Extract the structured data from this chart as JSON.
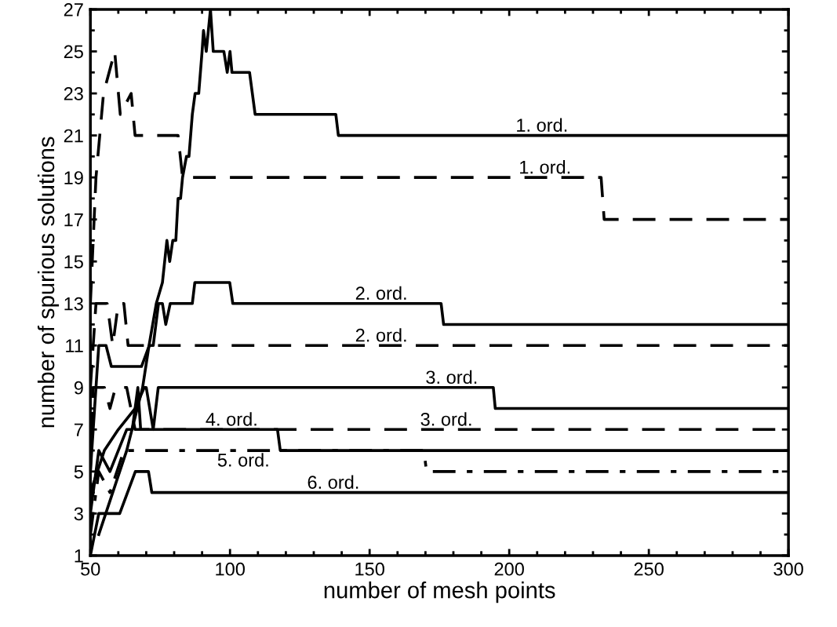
{
  "chart_data": {
    "type": "line",
    "xlabel": "number of mesh points",
    "ylabel": "number of spurious solutions",
    "xlim": [
      50,
      300
    ],
    "ylim": [
      1,
      27
    ],
    "xticks": [
      50,
      {
        "value": 60,
        "label": null
      },
      {
        "value": 70,
        "label": null
      },
      {
        "value": 80,
        "label": null
      },
      {
        "value": 90,
        "label": null
      },
      100,
      {
        "value": 110,
        "label": null
      },
      {
        "value": 120,
        "label": null
      },
      {
        "value": 130,
        "label": null
      },
      {
        "value": 140,
        "label": null
      },
      150,
      {
        "value": 160,
        "label": null
      },
      {
        "value": 170,
        "label": null
      },
      {
        "value": 180,
        "label": null
      },
      {
        "value": 190,
        "label": null
      },
      200,
      {
        "value": 210,
        "label": null
      },
      {
        "value": 220,
        "label": null
      },
      {
        "value": 230,
        "label": null
      },
      {
        "value": 240,
        "label": null
      },
      250,
      {
        "value": 260,
        "label": null
      },
      {
        "value": 270,
        "label": null
      },
      {
        "value": 280,
        "label": null
      },
      {
        "value": 290,
        "label": null
      },
      300
    ],
    "yticks": [
      1,
      {
        "value": 2,
        "label": null
      },
      3,
      {
        "value": 4,
        "label": null
      },
      5,
      {
        "value": 6,
        "label": null
      },
      7,
      {
        "value": 8,
        "label": null
      },
      9,
      {
        "value": 10,
        "label": null
      },
      11,
      {
        "value": 12,
        "label": null
      },
      13,
      {
        "value": 14,
        "label": null
      },
      15,
      {
        "value": 16,
        "label": null
      },
      17,
      {
        "value": 18,
        "label": null
      },
      19,
      {
        "value": 20,
        "label": null
      },
      21,
      {
        "value": 22,
        "label": null
      },
      23,
      {
        "value": 24,
        "label": null
      },
      25,
      {
        "value": 26,
        "label": null
      },
      27
    ],
    "grid": false,
    "legend": false,
    "marker": "none",
    "series": [
      {
        "color": "#000000",
        "line_style": "solid",
        "x": [
          53,
          58,
          63,
          68.7,
          71,
          73.6,
          75.8,
          77.4,
          78.4,
          79.5,
          80.6,
          81.4,
          82.3,
          83,
          84.4,
          85.3,
          86.5,
          87.5,
          88.8,
          90,
          90.5,
          91.5,
          93,
          94,
          97.8,
          99,
          100,
          100.7,
          107,
          109,
          137.9,
          138.8,
          300
        ],
        "values": [
          2,
          4,
          6,
          9,
          11,
          13,
          14,
          16,
          15,
          16,
          16,
          18,
          18,
          19,
          20,
          20,
          22,
          23,
          23,
          25,
          26,
          25,
          27,
          25,
          25,
          24,
          25,
          24,
          24,
          22,
          22,
          21,
          21
        ]
      },
      {
        "color": "#000000",
        "line_style": "dashed",
        "x": [
          50,
          52,
          54.7,
          58.7,
          60.7,
          64.6,
          66,
          81.4,
          83,
          232.9,
          234,
          300
        ],
        "values": [
          13,
          19,
          23,
          25,
          22,
          23,
          21,
          21,
          19,
          19,
          17,
          17
        ]
      },
      {
        "color": "#000000",
        "line_style": "solid",
        "x": [
          50,
          53,
          55.6,
          57.5,
          68.3,
          71.1,
          72.5,
          74.4,
          75.8,
          77,
          78.6,
          86.5,
          87.4,
          99.9,
          101,
          175.6,
          176.5,
          300
        ],
        "values": [
          5,
          11,
          11,
          10,
          10,
          11,
          11,
          13,
          13,
          12,
          13,
          13,
          14,
          14,
          13,
          13,
          12,
          12
        ]
      },
      {
        "color": "#000000",
        "line_style": "dashed",
        "x": [
          50,
          52,
          56,
          58,
          60,
          62,
          63.5,
          300
        ],
        "values": [
          9,
          13,
          13,
          11,
          13,
          13,
          11,
          11
        ]
      },
      {
        "color": "#000000",
        "line_style": "solid",
        "x": [
          50,
          55,
          60,
          66,
          69.3,
          70,
          72.5,
          74.3,
          194.3,
          195,
          300
        ],
        "values": [
          4,
          6,
          7,
          8,
          9,
          9,
          7,
          9,
          9,
          8,
          8
        ]
      },
      {
        "color": "#000000",
        "line_style": "dashed",
        "x": [
          50,
          51,
          55,
          57,
          59,
          63,
          66,
          300
        ],
        "values": [
          5,
          9,
          9,
          8,
          9,
          9,
          7,
          7
        ]
      },
      {
        "color": "#000000",
        "line_style": "solid",
        "x": [
          50,
          53,
          57,
          63,
          65,
          67,
          68,
          117,
          118,
          300
        ],
        "values": [
          3,
          6,
          5,
          7,
          7,
          9,
          7,
          7,
          6,
          6
        ]
      },
      {
        "color": "#000000",
        "line_style": "dashdot",
        "x": [
          50,
          53,
          57,
          62,
          169.4,
          170.4,
          300
        ],
        "values": [
          2,
          5,
          4,
          6,
          6,
          5,
          5
        ]
      },
      {
        "color": "#000000",
        "line_style": "solid",
        "x": [
          50,
          51.5,
          53,
          60.5,
          66.1,
          70.8,
          72,
          300
        ],
        "values": [
          1,
          2,
          3,
          3,
          5,
          5,
          4,
          4
        ]
      }
    ],
    "annotations": [
      {
        "text": "1. ord.",
        "x": 211.7,
        "y": 21
      },
      {
        "text": "1. ord.",
        "x": 212.8,
        "y": 19
      },
      {
        "text": "2. ord.",
        "x": 154.2,
        "y": 13
      },
      {
        "text": "2. ord.",
        "x": 154.2,
        "y": 11
      },
      {
        "text": "3. ord.",
        "x": 179.4,
        "y": 9
      },
      {
        "text": "3. ord.",
        "x": 177.5,
        "y": 7
      },
      {
        "text": "4. ord.",
        "x": 100.6,
        "y": 7
      },
      {
        "text": "5. ord.",
        "x": 104.8,
        "y": 6
      },
      {
        "text": "6. ord.",
        "x": 137,
        "y": 4
      }
    ]
  }
}
